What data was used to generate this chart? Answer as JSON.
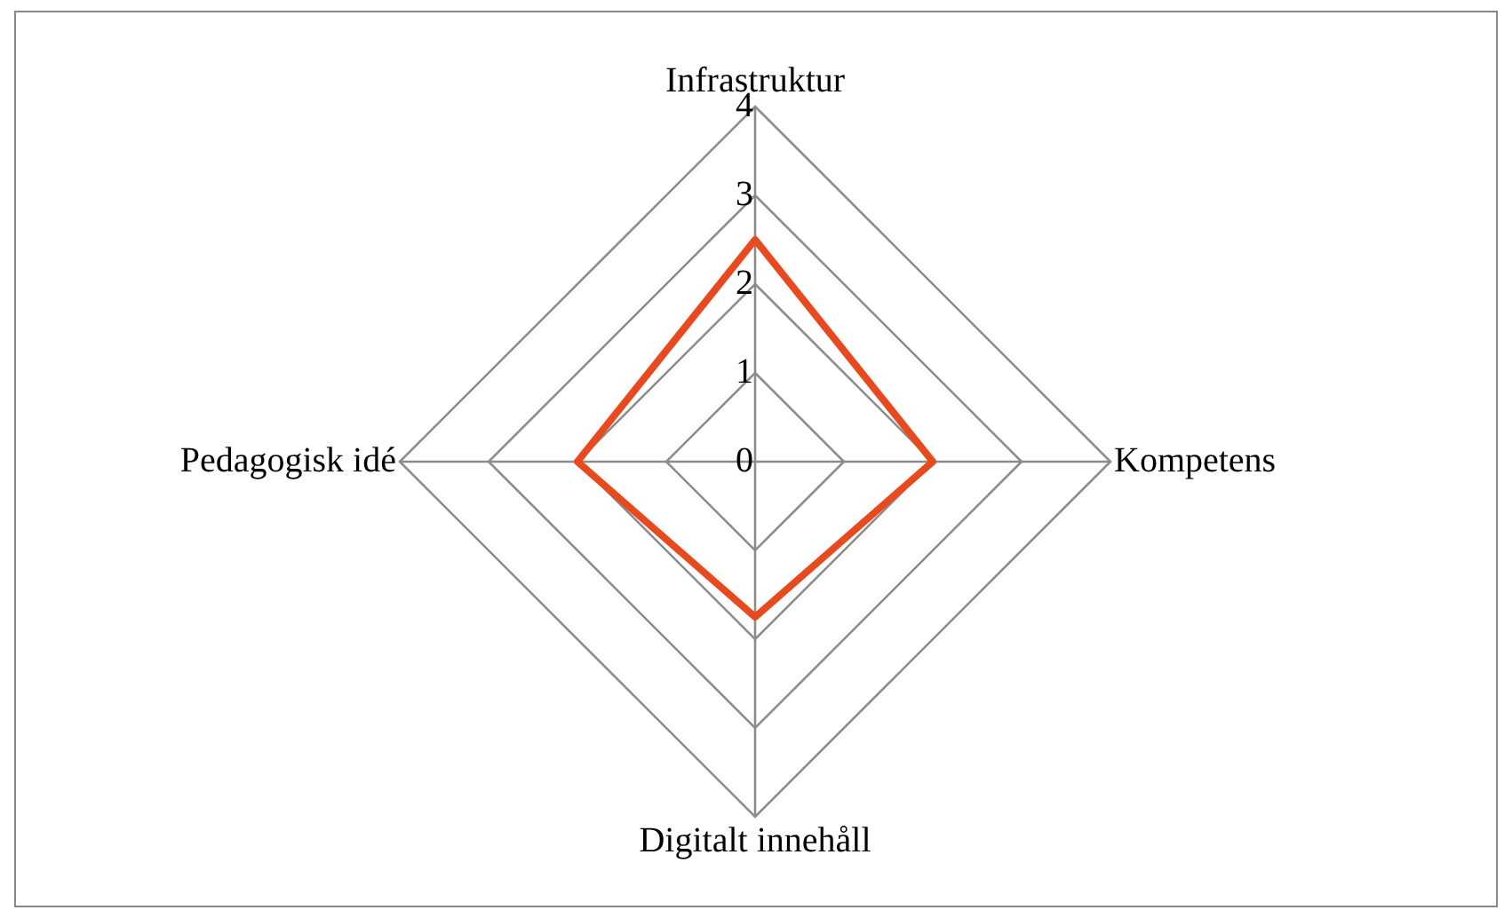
{
  "chart_data": {
    "type": "radar",
    "categories": [
      "Infrastruktur",
      "Kompetens",
      "Digitalt innehåll",
      "Pedagogisk idé"
    ],
    "series": [
      {
        "color": "#e8491d",
        "values": [
          2.5,
          2,
          1.75,
          2
        ]
      }
    ],
    "ylim": [
      0,
      4
    ],
    "yticks": [
      0,
      1,
      2,
      3,
      4
    ],
    "grid": true,
    "legend": false,
    "marker": "none"
  }
}
